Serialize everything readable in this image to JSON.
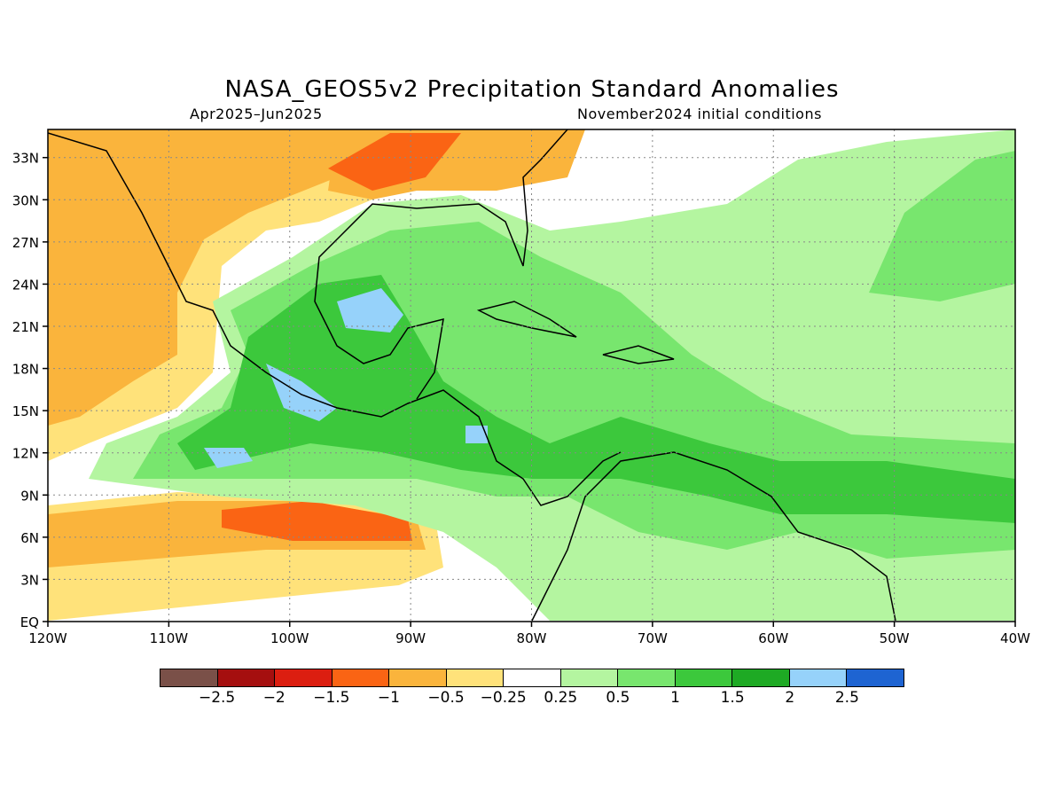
{
  "title": "NASA_GEOS5v2 Precipitation Standard Anomalies",
  "subtitle_left": "Apr2025–Jun2025",
  "subtitle_right": "November2024 initial conditions",
  "map": {
    "lon_range": [
      -120,
      -40
    ],
    "lat_range": [
      0,
      35
    ],
    "lat_ticks": [
      "33N",
      "30N",
      "27N",
      "24N",
      "21N",
      "18N",
      "15N",
      "12N",
      "9N",
      "6N",
      "3N",
      "EQ"
    ],
    "lat_values": [
      33,
      30,
      27,
      24,
      21,
      18,
      15,
      12,
      9,
      6,
      3,
      0
    ],
    "lon_ticks": [
      "120W",
      "110W",
      "100W",
      "90W",
      "80W",
      "70W",
      "60W",
      "50W",
      "40W"
    ],
    "lon_values": [
      -120,
      -110,
      -100,
      -90,
      -80,
      -70,
      -60,
      -50,
      -40
    ],
    "grid": "dotted"
  },
  "colorbar": {
    "colors": [
      "#7a5048",
      "#a50f0f",
      "#dc1e10",
      "#fa6414",
      "#fab43c",
      "#ffe27a",
      "#ffffff",
      "#b4f5a0",
      "#78e66e",
      "#3cc83c",
      "#1eaa24",
      "#96d2fa",
      "#1e64d2"
    ],
    "labels": [
      "−2.5",
      "−2",
      "−1.5",
      "−1",
      "−0.5",
      "−0.25",
      "0.25",
      "0.5",
      "1",
      "1.5",
      "2",
      "2.5"
    ]
  }
}
